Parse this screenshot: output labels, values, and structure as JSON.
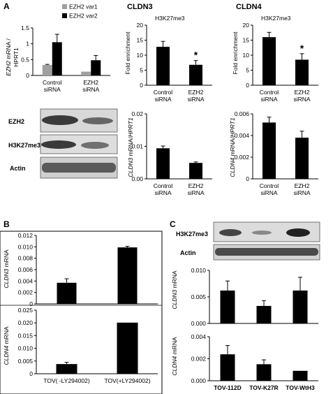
{
  "panels": {
    "A": {
      "label": "A",
      "ezh2_chart": {
        "ylabel_italic": "EZH2",
        "ylabel_rest": " mRNA /",
        "ylabel_line2": "HPRT1",
        "legend": [
          "EZH2 var1",
          "EZH2 var2"
        ]
      },
      "cldn3_title": "CLDN3",
      "cldn4_title": "CLDN4",
      "h3_title": "H3K27me3",
      "fold_ylabel": "Fold enrichment",
      "cldn3_mrna_ylabel": {
        "italic": "CLDN3",
        "rest": " mRNA/",
        "italic2": "HPRT1"
      },
      "cldn4_mrna_ylabel": {
        "italic": "CLDN4",
        "rest": " mRNA/",
        "italic2": "HPRT1"
      },
      "blot_labels": [
        "EZH2",
        "H3K27me3",
        "Actin"
      ],
      "sig_mark": "*"
    },
    "B": {
      "label": "B",
      "cldn3_ylabel": {
        "italic": "CLDN3",
        "rest": " mRNA"
      },
      "cldn4_ylabel": {
        "italic": "CLDN4",
        "rest": " mRNA"
      }
    },
    "C": {
      "label": "C",
      "blot_labels": [
        "H3K27me3",
        "Actin"
      ],
      "cldn3_ylabel": {
        "italic": "CLDN3",
        "rest": " mRNA"
      },
      "cldn4_ylabel": {
        "italic": "CLDN4",
        "rest": " mRNA"
      }
    }
  },
  "chart_data": [
    {
      "id": "A-ezh2",
      "type": "bar",
      "categories": [
        "Control siRNA",
        "EZH2 siRNA"
      ],
      "series": [
        {
          "name": "EZH2 var1",
          "values": [
            0.33,
            0.12
          ],
          "errors": [
            0.02,
            0.0
          ],
          "color": "#a0a0a0"
        },
        {
          "name": "EZH2 var2",
          "values": [
            1.05,
            0.48
          ],
          "errors": [
            0.25,
            0.15
          ],
          "color": "#000000"
        }
      ],
      "ylim": [
        0,
        1.5
      ],
      "yticks": [
        0,
        0.5,
        1,
        1.5
      ],
      "ytick_labels": [
        "0",
        "0.5",
        "1",
        "1.5"
      ]
    },
    {
      "id": "A-cldn3-h3",
      "type": "bar",
      "categories": [
        "Control siRNA",
        "EZH2 siRNA"
      ],
      "values": [
        12.8,
        6.8
      ],
      "errors": [
        1.8,
        1.4
      ],
      "significance": [
        false,
        true
      ],
      "ylim": [
        0,
        20
      ],
      "yticks": [
        0,
        5,
        10,
        15,
        20
      ],
      "ytick_labels": [
        "0",
        "5",
        "10",
        "15",
        "20"
      ]
    },
    {
      "id": "A-cldn4-h3",
      "type": "bar",
      "categories": [
        "Control siRNA",
        "EZH2 siRNA"
      ],
      "values": [
        16.0,
        8.5
      ],
      "errors": [
        1.6,
        2.0
      ],
      "significance": [
        false,
        true
      ],
      "ylim": [
        0,
        20
      ],
      "yticks": [
        0,
        5,
        10,
        15,
        20
      ],
      "ytick_labels": [
        "0",
        "5",
        "10",
        "15",
        "20"
      ]
    },
    {
      "id": "A-cldn3-mrna",
      "type": "bar",
      "categories": [
        "Control siRNA",
        "EZH2 siRNA"
      ],
      "values": [
        0.0094,
        0.0049
      ],
      "errors": [
        0.0007,
        0.0003
      ],
      "ylim": [
        0,
        0.02
      ],
      "yticks": [
        0,
        0.01,
        0.02
      ],
      "ytick_labels": [
        "0.00",
        "0.01",
        "0.02"
      ]
    },
    {
      "id": "A-cldn4-mrna",
      "type": "bar",
      "categories": [
        "Control siRNA",
        "EZH2 siRNA"
      ],
      "values": [
        0.0052,
        0.0038
      ],
      "errors": [
        0.0005,
        0.0006
      ],
      "ylim": [
        0,
        0.006
      ],
      "yticks": [
        0,
        0.002,
        0.004,
        0.006
      ],
      "ytick_labels": [
        "0",
        "0.002",
        "0.004",
        "0.006"
      ]
    },
    {
      "id": "B-cldn3",
      "type": "bar",
      "categories": [
        "TOV( -LY294002)",
        "TOV(+LY294002)"
      ],
      "values": [
        0.0037,
        0.0099
      ],
      "errors": [
        0.0007,
        0.0002
      ],
      "ylim": [
        0,
        0.012
      ],
      "yticks": [
        0,
        0.002,
        0.004,
        0.006,
        0.008,
        0.01,
        0.012
      ],
      "ytick_labels": [
        "0",
        "0.002",
        "0.004",
        "0.006",
        "0.008",
        "0.010",
        "0.012"
      ]
    },
    {
      "id": "B-cldn4",
      "type": "bar",
      "categories": [
        "TOV( -LY294002)",
        "TOV(+LY294002)"
      ],
      "values": [
        0.0038,
        0.0201
      ],
      "errors": [
        0.0007,
        0.0
      ],
      "ylim": [
        0,
        0.025
      ],
      "yticks": [
        0,
        0.005,
        0.01,
        0.015,
        0.02,
        0.025
      ],
      "ytick_labels": [
        "0",
        "0.005",
        "0.010",
        "0.015",
        "0.020",
        "0.025"
      ]
    },
    {
      "id": "C-cldn3",
      "type": "bar",
      "categories": [
        "TOV-112D",
        "TOV-K27R",
        "TOV-WtH3"
      ],
      "values": [
        0.0062,
        0.0033,
        0.0062
      ],
      "errors": [
        0.0018,
        0.001,
        0.0025
      ],
      "ylim": [
        0,
        0.01
      ],
      "yticks": [
        0,
        0.005,
        0.01
      ],
      "ytick_labels": [
        "0.000",
        "0.005",
        "0.010"
      ]
    },
    {
      "id": "C-cldn4",
      "type": "bar",
      "categories": [
        "TOV-112D",
        "TOV-K27R",
        "TOV-WtH3"
      ],
      "values": [
        0.0024,
        0.0015,
        0.0009
      ],
      "errors": [
        0.0008,
        0.0004,
        0.0
      ],
      "ylim": [
        0,
        0.004
      ],
      "yticks": [
        0,
        0.002,
        0.004
      ],
      "ytick_labels": [
        "0.000",
        "0.002",
        "0.004"
      ]
    }
  ]
}
